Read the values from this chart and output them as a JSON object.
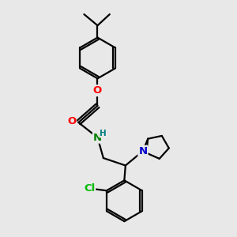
{
  "bg_color": "#e8e8e8",
  "bond_color": "#000000",
  "bond_width": 1.6,
  "atom_colors": {
    "O": "#ff0000",
    "N_amide": "#008000",
    "N_pyrr": "#0000cd",
    "Cl": "#00bb00",
    "H": "#008080",
    "C": "#000000"
  },
  "font_size": 9.5,
  "small_font": 7.5
}
